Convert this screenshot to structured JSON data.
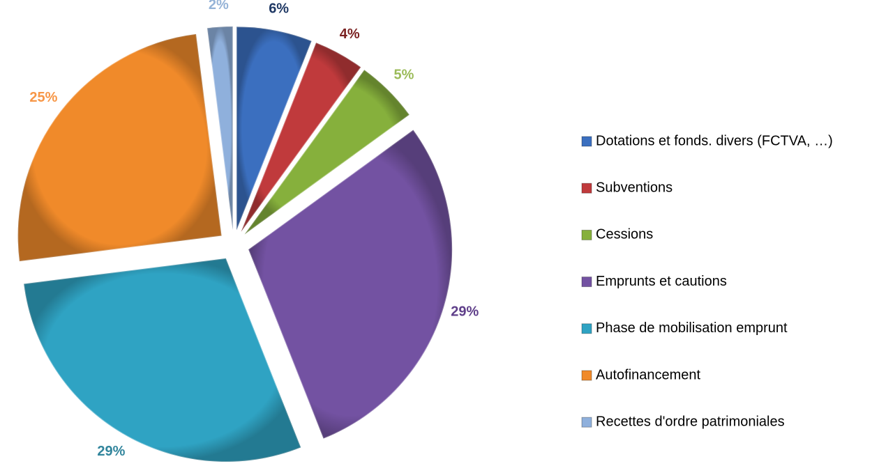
{
  "chart_data": {
    "type": "pie",
    "categories": [
      "Dotations et fonds. divers (FCTVA, …)",
      "Subventions",
      "Cessions",
      "Emprunts et cautions",
      "Phase de mobilisation emprunt",
      "Autofinancement",
      "Recettes d'ordre patrimoniales"
    ],
    "values": [
      6,
      4,
      5,
      29,
      29,
      25,
      2
    ],
    "value_labels": [
      "6%",
      "4%",
      "5%",
      "29%",
      "29%",
      "25%",
      "2%"
    ],
    "colors": [
      "#3b6fbf",
      "#c03a3c",
      "#86b03c",
      "#7352a2",
      "#2fa3c3",
      "#f08a2a",
      "#8fb0dc"
    ],
    "label_colors": [
      "#1f3864",
      "#7b2222",
      "#9bbb59",
      "#5f3f8a",
      "#31859c",
      "#f79646",
      "#95b3d7"
    ],
    "legend": "right"
  }
}
